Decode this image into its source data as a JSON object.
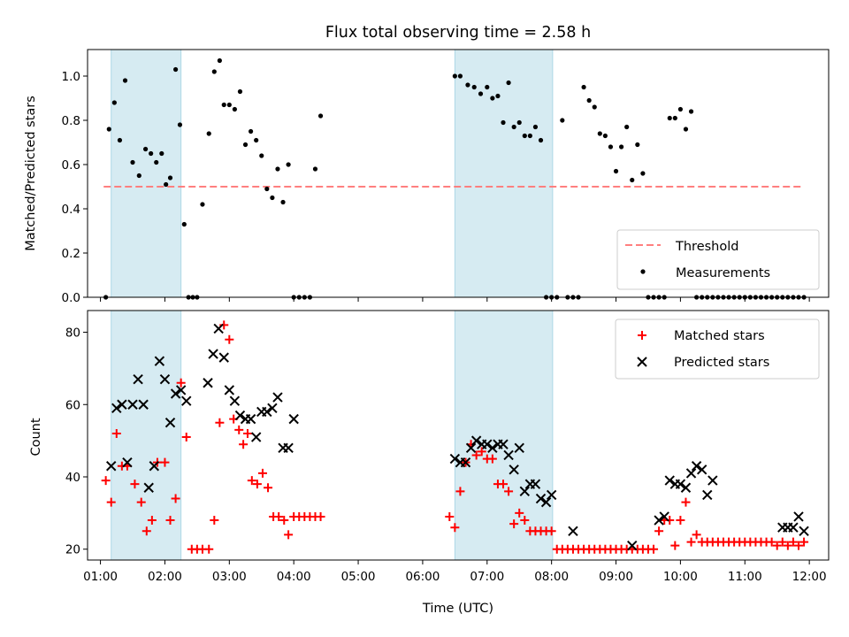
{
  "chart_data": [
    {
      "type": "scatter",
      "title": "Flux total observing time = 2.58 h",
      "ylabel": "Matched/Predicted stars",
      "xlim": [
        "00:48",
        "12:18"
      ],
      "ylim": [
        0,
        1.12
      ],
      "yticks": [
        "0.0",
        "0.2",
        "0.4",
        "0.6",
        "0.8",
        "1.0"
      ],
      "threshold": {
        "name": "Threshold",
        "y": 0.5,
        "x": [
          "01:03",
          "11:55"
        ],
        "color": "#ff7f7f"
      },
      "shaded_intervals": [
        [
          "01:10",
          "02:15"
        ],
        [
          "06:30",
          "08:01"
        ]
      ],
      "series": [
        {
          "name": "Measurements",
          "color": "#000000",
          "x": [
            "01:05",
            "01:08",
            "01:13",
            "01:18",
            "01:23",
            "01:30",
            "01:36",
            "01:42",
            "01:47",
            "01:52",
            "01:57",
            "02:01",
            "02:05",
            "02:10",
            "02:14",
            "02:18",
            "02:22",
            "02:26",
            "02:30",
            "02:35",
            "02:41",
            "02:46",
            "02:51",
            "02:55",
            "03:00",
            "03:05",
            "03:10",
            "03:15",
            "03:20",
            "03:25",
            "03:30",
            "03:35",
            "03:40",
            "03:45",
            "03:50",
            "03:55",
            "04:00",
            "04:05",
            "04:10",
            "04:15",
            "04:20",
            "04:25",
            "06:30",
            "06:35",
            "06:42",
            "06:48",
            "06:54",
            "07:00",
            "07:05",
            "07:10",
            "07:15",
            "07:20",
            "07:25",
            "07:30",
            "07:35",
            "07:40",
            "07:45",
            "07:50",
            "07:55",
            "08:00",
            "08:05",
            "08:10",
            "08:15",
            "08:20",
            "08:25",
            "08:30",
            "08:35",
            "08:40",
            "08:45",
            "08:50",
            "08:55",
            "09:00",
            "09:05",
            "09:10",
            "09:15",
            "09:20",
            "09:25",
            "09:30",
            "09:35",
            "09:40",
            "09:45",
            "09:50",
            "09:55",
            "10:00",
            "10:05",
            "10:10",
            "10:15",
            "10:20",
            "10:25",
            "10:30",
            "10:35",
            "10:40",
            "10:45",
            "10:50",
            "10:55",
            "11:00",
            "11:05",
            "11:10",
            "11:15",
            "11:20",
            "11:25",
            "11:30",
            "11:35",
            "11:40",
            "11:45",
            "11:50",
            "11:55"
          ],
          "y": [
            0.0,
            0.76,
            0.88,
            0.71,
            0.98,
            0.61,
            0.55,
            0.67,
            0.65,
            0.61,
            0.65,
            0.51,
            0.54,
            1.03,
            0.78,
            0.33,
            0.0,
            0.0,
            0.0,
            0.42,
            0.74,
            1.02,
            1.07,
            0.87,
            0.87,
            0.85,
            0.93,
            0.69,
            0.75,
            0.71,
            0.64,
            0.49,
            0.45,
            0.58,
            0.43,
            0.6,
            0.0,
            0.0,
            0.0,
            0.0,
            0.58,
            0.82,
            1.0,
            1.0,
            0.96,
            0.95,
            0.92,
            0.95,
            0.9,
            0.91,
            0.79,
            0.97,
            0.77,
            0.79,
            0.73,
            0.73,
            0.77,
            0.71,
            0.0,
            0.0,
            0.0,
            0.8,
            0.0,
            0.0,
            0.0,
            0.95,
            0.89,
            0.86,
            0.74,
            0.73,
            0.68,
            0.57,
            0.68,
            0.77,
            0.53,
            0.69,
            0.56,
            0.0,
            0.0,
            0.0,
            0.0,
            0.81,
            0.81,
            0.85,
            0.76,
            0.84,
            0.0,
            0.0,
            0.0,
            0.0,
            0.0,
            0.0,
            0.0,
            0.0,
            0.0,
            0.0,
            0.0,
            0.0,
            0.0,
            0.0,
            0.0,
            0.0,
            0.0,
            0.0,
            0.0,
            0.0,
            0.0
          ]
        }
      ],
      "legend": {
        "position": "lower right",
        "entries": [
          "Threshold",
          "Measurements"
        ]
      }
    },
    {
      "type": "scatter",
      "xlabel": "Time (UTC)",
      "ylabel": "Count",
      "xlim": [
        "00:48",
        "12:18"
      ],
      "ylim": [
        17,
        86
      ],
      "yticks": [
        "20",
        "40",
        "60",
        "80"
      ],
      "xticks": [
        "01:00",
        "02:00",
        "03:00",
        "04:00",
        "05:00",
        "06:00",
        "07:00",
        "08:00",
        "09:00",
        "10:00",
        "11:00",
        "12:00"
      ],
      "shaded_intervals": [
        [
          "01:10",
          "02:15"
        ],
        [
          "06:30",
          "08:01"
        ]
      ],
      "series": [
        {
          "name": "Matched stars",
          "marker": "+",
          "color": "#ff0000",
          "x": [
            "01:05",
            "01:10",
            "01:15",
            "01:20",
            "01:25",
            "01:32",
            "01:38",
            "01:43",
            "01:48",
            "01:53",
            "02:00",
            "02:05",
            "02:10",
            "02:15",
            "02:20",
            "02:25",
            "02:30",
            "02:35",
            "02:41",
            "02:46",
            "02:51",
            "02:55",
            "03:00",
            "03:04",
            "03:09",
            "03:13",
            "03:17",
            "03:21",
            "03:26",
            "03:31",
            "03:36",
            "03:41",
            "03:46",
            "03:51",
            "03:55",
            "04:00",
            "04:05",
            "04:10",
            "04:15",
            "04:20",
            "04:25",
            "06:25",
            "06:30",
            "06:35",
            "06:40",
            "06:45",
            "06:50",
            "06:55",
            "07:00",
            "07:05",
            "07:10",
            "07:15",
            "07:20",
            "07:25",
            "07:30",
            "07:35",
            "07:40",
            "07:45",
            "07:50",
            "07:55",
            "08:00",
            "08:05",
            "08:10",
            "08:15",
            "08:20",
            "08:25",
            "08:30",
            "08:35",
            "08:40",
            "08:45",
            "08:50",
            "08:55",
            "09:00",
            "09:05",
            "09:10",
            "09:15",
            "09:20",
            "09:25",
            "09:30",
            "09:35",
            "09:40",
            "09:45",
            "09:50",
            "09:55",
            "10:00",
            "10:05",
            "10:10",
            "10:15",
            "10:20",
            "10:25",
            "10:30",
            "10:35",
            "10:40",
            "10:45",
            "10:50",
            "10:55",
            "11:00",
            "11:05",
            "11:10",
            "11:15",
            "11:20",
            "11:25",
            "11:30",
            "11:35",
            "11:40",
            "11:45",
            "11:50",
            "11:55"
          ],
          "y": [
            39,
            33,
            52,
            43,
            43,
            38,
            33,
            25,
            28,
            44,
            44,
            28,
            34,
            66,
            51,
            20,
            20,
            20,
            20,
            28,
            55,
            82,
            78,
            56,
            53,
            49,
            52,
            39,
            38,
            41,
            37,
            29,
            29,
            28,
            24,
            29,
            29,
            29,
            29,
            29,
            29,
            29,
            26,
            36,
            44,
            49,
            46,
            47,
            45,
            45,
            38,
            38,
            36,
            27,
            30,
            28,
            25,
            25,
            25,
            25,
            25,
            20,
            20,
            20,
            20,
            20,
            20,
            20,
            20,
            20,
            20,
            20,
            20,
            20,
            20,
            20,
            20,
            20,
            20,
            20,
            25,
            28,
            28,
            21,
            28,
            33,
            22,
            24,
            22,
            22,
            22,
            22,
            22,
            22,
            22,
            22,
            22,
            22,
            22,
            22,
            22,
            22,
            21,
            22,
            21,
            22,
            21,
            22
          ]
        },
        {
          "name": "Predicted stars",
          "marker": "x",
          "color": "#000000",
          "x": [
            "01:10",
            "01:15",
            "01:20",
            "01:25",
            "01:30",
            "01:35",
            "01:40",
            "01:45",
            "01:50",
            "01:55",
            "02:00",
            "02:05",
            "02:10",
            "02:15",
            "02:20",
            "02:40",
            "02:45",
            "02:50",
            "02:55",
            "03:00",
            "03:05",
            "03:10",
            "03:15",
            "03:20",
            "03:25",
            "03:30",
            "03:35",
            "03:40",
            "03:45",
            "03:50",
            "03:55",
            "04:00",
            "06:30",
            "06:35",
            "06:40",
            "06:45",
            "06:50",
            "06:55",
            "07:00",
            "07:05",
            "07:10",
            "07:15",
            "07:20",
            "07:25",
            "07:30",
            "07:35",
            "07:40",
            "07:45",
            "07:50",
            "07:55",
            "08:00",
            "08:20",
            "09:15",
            "09:40",
            "09:45",
            "09:50",
            "09:55",
            "10:00",
            "10:05",
            "10:10",
            "10:15",
            "10:20",
            "10:25",
            "10:30",
            "11:35",
            "11:40",
            "11:45",
            "11:50",
            "11:55"
          ],
          "y": [
            43,
            59,
            60,
            44,
            60,
            67,
            60,
            37,
            43,
            72,
            67,
            55,
            63,
            64,
            61,
            66,
            74,
            81,
            73,
            64,
            61,
            57,
            56,
            56,
            51,
            58,
            58,
            59,
            62,
            48,
            48,
            56,
            45,
            44,
            44,
            48,
            50,
            49,
            49,
            48,
            49,
            49,
            46,
            42,
            48,
            36,
            38,
            38,
            34,
            33,
            35,
            25,
            21,
            28,
            29,
            39,
            38,
            38,
            37,
            41,
            43,
            42,
            35,
            39,
            26,
            26,
            26,
            29,
            25
          ]
        }
      ],
      "legend": {
        "position": "upper right",
        "entries": [
          "Matched stars",
          "Predicted stars"
        ]
      }
    }
  ]
}
